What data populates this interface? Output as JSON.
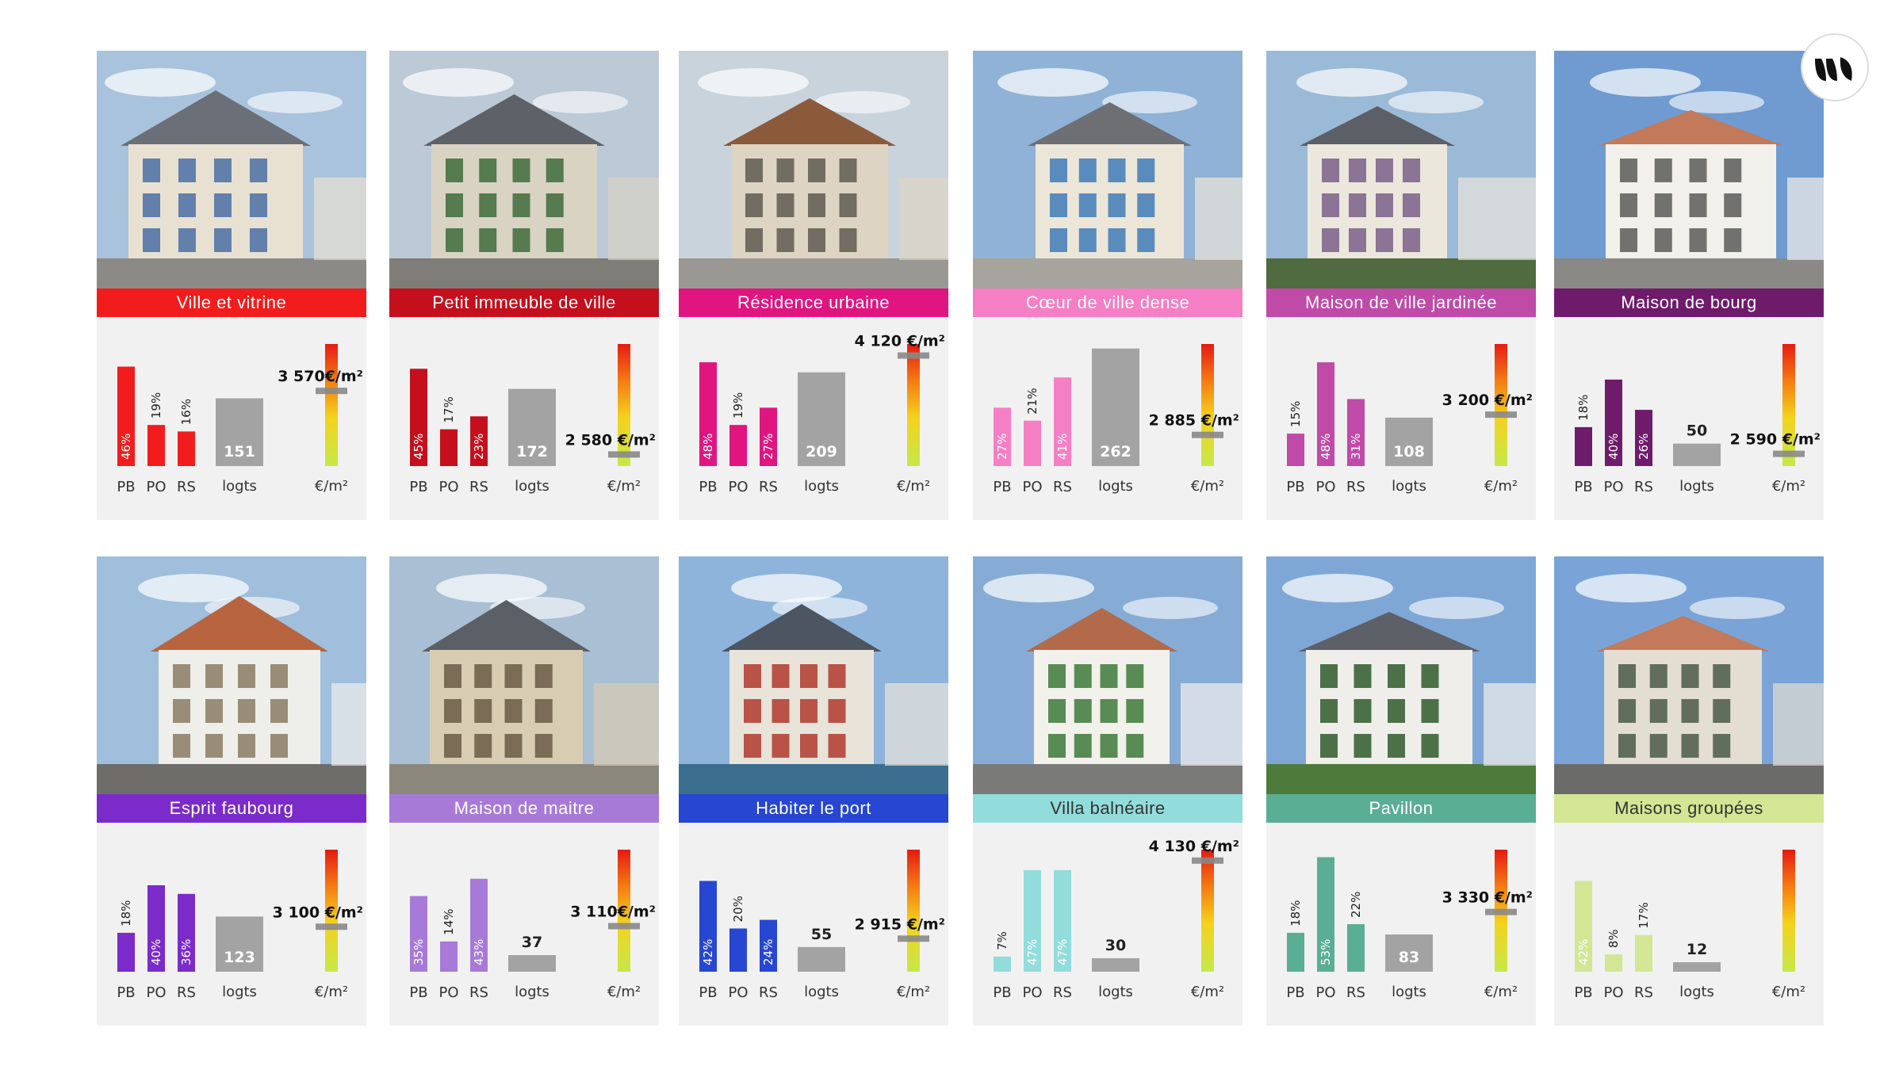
{
  "chart_labels": {
    "pb": "PB",
    "po": "PO",
    "rs": "RS",
    "logts": "logts",
    "price_unit": "€/m²"
  },
  "chart_data": [
    {
      "type": "bar",
      "title": "Ville et vitrine",
      "color": "#f21c1c",
      "text_color": "#ffffff",
      "categories": [
        "PB",
        "PO",
        "RS"
      ],
      "values": [
        46,
        19,
        16
      ],
      "logements": 151,
      "price": 3570,
      "price_label": "3 570€/m²"
    },
    {
      "type": "bar",
      "title": "Petit immeuble de ville",
      "color": "#c50f1d",
      "text_color": "#ffffff",
      "categories": [
        "PB",
        "PO",
        "RS"
      ],
      "values": [
        45,
        17,
        23
      ],
      "logements": 172,
      "price": 2580,
      "price_label": "2 580 €/m²"
    },
    {
      "type": "bar",
      "title": "Résidence urbaine",
      "color": "#e0157f",
      "text_color": "#ffffff",
      "categories": [
        "PB",
        "PO",
        "RS"
      ],
      "values": [
        48,
        19,
        27
      ],
      "logements": 209,
      "price": 4120,
      "price_label": "4 120 €/m²"
    },
    {
      "type": "bar",
      "title": "Cœur de ville dense",
      "color": "#f57fc4",
      "text_color": "#ffffff",
      "categories": [
        "PB",
        "PO",
        "RS"
      ],
      "values": [
        27,
        21,
        41
      ],
      "logements": 262,
      "price": 2885,
      "price_label": "2 885 €/m²"
    },
    {
      "type": "bar",
      "title": "Maison de ville jardinée",
      "color": "#c04aa7",
      "text_color": "#ffffff",
      "categories": [
        "PB",
        "PO",
        "RS"
      ],
      "values": [
        15,
        48,
        31
      ],
      "logements": 108,
      "price": 3200,
      "price_label": "3 200 €/m²"
    },
    {
      "type": "bar",
      "title": "Maison de bourg",
      "color": "#6f1b6c",
      "text_color": "#ffffff",
      "categories": [
        "PB",
        "PO",
        "RS"
      ],
      "values": [
        18,
        40,
        26
      ],
      "logements": 50,
      "price": 2590,
      "price_label": "2 590 €/m²"
    },
    {
      "type": "bar",
      "title": "Esprit faubourg",
      "color": "#7a2bc9",
      "text_color": "#ffffff",
      "categories": [
        "PB",
        "PO",
        "RS"
      ],
      "values": [
        18,
        40,
        36
      ],
      "logements": 123,
      "price": 3100,
      "price_label": "3 100 €/m²"
    },
    {
      "type": "bar",
      "title": "Maison de maitre",
      "color": "#a77ad8",
      "text_color": "#ffffff",
      "categories": [
        "PB",
        "PO",
        "RS"
      ],
      "values": [
        35,
        14,
        43
      ],
      "logements": 37,
      "price": 3110,
      "price_label": "3 110€/m²"
    },
    {
      "type": "bar",
      "title": "Habiter le port",
      "color": "#2746d1",
      "text_color": "#ffffff",
      "categories": [
        "PB",
        "PO",
        "RS"
      ],
      "values": [
        42,
        20,
        24
      ],
      "logements": 55,
      "price": 2915,
      "price_label": "2 915 €/m²"
    },
    {
      "type": "bar",
      "title": "Villa balnéaire",
      "color": "#92dcdc",
      "text_color": "#333333",
      "categories": [
        "PB",
        "PO",
        "RS"
      ],
      "values": [
        7,
        47,
        47
      ],
      "logements": 30,
      "price": 4130,
      "price_label": "4 130 €/m²"
    },
    {
      "type": "bar",
      "title": "Pavillon",
      "color": "#5aae94",
      "text_color": "#ffffff",
      "categories": [
        "PB",
        "PO",
        "RS"
      ],
      "values": [
        18,
        53,
        22
      ],
      "logements": 83,
      "price": 3330,
      "price_label": "3 330 €/m²"
    },
    {
      "type": "bar",
      "title": "Maisons groupées",
      "color": "#d3e693",
      "text_color": "#333333",
      "categories": [
        "PB",
        "PO",
        "RS"
      ],
      "values": [
        42,
        8,
        17
      ],
      "logements": 12,
      "price": null,
      "price_label": ""
    }
  ],
  "photos": [
    {
      "sky": "#a9c3dc",
      "wall": "#e8e1d2",
      "roof": "#6b6f78",
      "ground": "#8b8a86",
      "accent": "#4a6fa5"
    },
    {
      "sky": "#bcc9d6",
      "wall": "#d9d3c4",
      "roof": "#5e6168",
      "ground": "#7f7d77",
      "accent": "#3d6b3a"
    },
    {
      "sky": "#c9d3dc",
      "wall": "#ddd4c4",
      "roof": "#8a5a3b",
      "ground": "#9a9893",
      "accent": "#5f5a52"
    },
    {
      "sky": "#8fb2d6",
      "wall": "#ece6d8",
      "roof": "#6d6f73",
      "ground": "#a7a49d",
      "accent": "#3f7ab8"
    },
    {
      "sky": "#9bbad8",
      "wall": "#ebe7dc",
      "roof": "#5c5f66",
      "ground": "#4f6b3f",
      "accent": "#7a5f8a"
    },
    {
      "sky": "#6f9bd1",
      "wall": "#f2f0ea",
      "roof": "#c27a5a",
      "ground": "#8a8985",
      "accent": "#5a5a5a"
    },
    {
      "sky": "#9fbfdc",
      "wall": "#eeeeea",
      "roof": "#b8643e",
      "ground": "#6e6d6a",
      "accent": "#8b7b63"
    },
    {
      "sky": "#a8bfd4",
      "wall": "#d8ccb3",
      "roof": "#5b5f66",
      "ground": "#8c877d",
      "accent": "#6a5a44"
    },
    {
      "sky": "#8fb4dc",
      "wall": "#e9e4da",
      "roof": "#4c5560",
      "ground": "#3b6e8f",
      "accent": "#b03a2e"
    },
    {
      "sky": "#86acd6",
      "wall": "#f3f1ec",
      "roof": "#b36a4a",
      "ground": "#7a7a78",
      "accent": "#3c7a3a"
    },
    {
      "sky": "#7fa7d6",
      "wall": "#efeeea",
      "roof": "#5d6066",
      "ground": "#4e7a3c",
      "accent": "#2f5a2c"
    },
    {
      "sky": "#7aa4d8",
      "wall": "#e3ddd2",
      "roof": "#c27a5a",
      "ground": "#6b6b69",
      "accent": "#4a5a4a"
    }
  ]
}
